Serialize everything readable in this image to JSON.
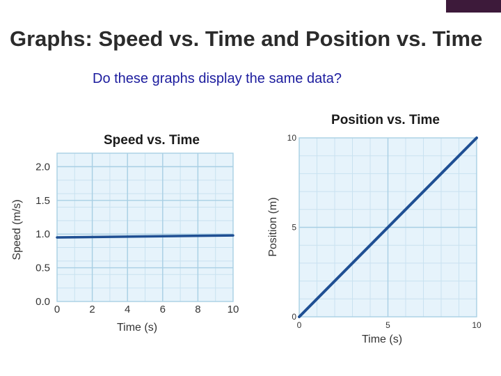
{
  "slide": {
    "title": "Graphs: Speed vs. Time and Position vs. Time",
    "subtitle": "Do these graphs display the same data?"
  },
  "colors": {
    "accent_tab": "#3d1a3a",
    "plot_background": "#e6f3fb",
    "grid_major": "#a8cfe4",
    "grid_minor": "#c9e2f0",
    "line": "#1f4f93",
    "subtitle": "#1c1c9e"
  },
  "chart_data": [
    {
      "type": "line",
      "title": "Speed vs. Time",
      "xlabel": "Time (s)",
      "ylabel": "Speed (m/s)",
      "xlim": [
        0,
        10
      ],
      "ylim": [
        0,
        2.2
      ],
      "xticks": [
        0,
        2,
        4,
        6,
        8,
        10
      ],
      "yticks": [
        0.0,
        0.5,
        1.0,
        1.5,
        2.0
      ],
      "ytick_labels": [
        "0.0",
        "0.5",
        "1.0",
        "1.5",
        "2.0"
      ],
      "grid": true,
      "series": [
        {
          "x": [
            0,
            10
          ],
          "y": [
            0.95,
            0.98
          ]
        }
      ]
    },
    {
      "type": "line",
      "title": "Position vs. Time",
      "xlabel": "Time (s)",
      "ylabel": "Position (m)",
      "xlim": [
        0,
        10
      ],
      "ylim": [
        0,
        10
      ],
      "xticks": [
        0,
        5,
        10
      ],
      "yticks": [
        0,
        5,
        10
      ],
      "ytick_labels": [
        "0",
        "5",
        "10"
      ],
      "grid": true,
      "series": [
        {
          "x": [
            0,
            10
          ],
          "y": [
            0,
            10
          ]
        }
      ]
    }
  ]
}
